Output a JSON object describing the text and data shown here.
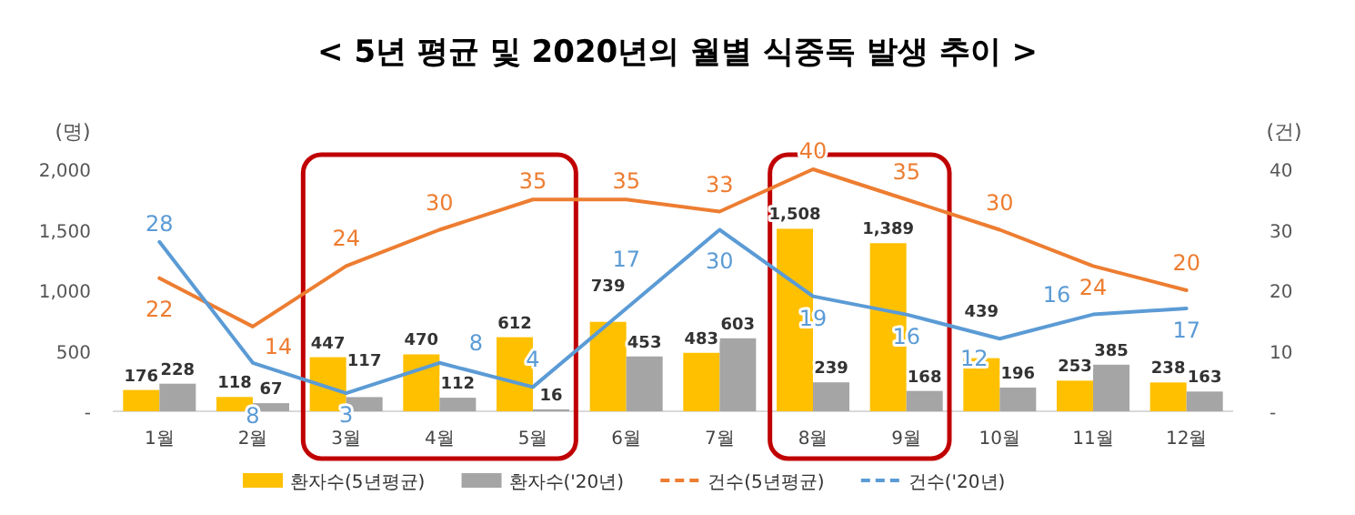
{
  "chart_data": {
    "type": "bar",
    "title": "< 5년 평균 및 2020년의 월별 식중독 발생 추이 >",
    "ylabel": "(명)",
    "y2label": "(건)",
    "categories": [
      "1월",
      "2월",
      "3월",
      "4월",
      "5월",
      "6월",
      "7월",
      "8월",
      "9월",
      "10월",
      "11월",
      "12월"
    ],
    "series": [
      {
        "name": "환자수(5년평균)",
        "type": "bar",
        "color": "#ffc000",
        "values": [
          176,
          118,
          447,
          470,
          612,
          739,
          483,
          1508,
          1389,
          439,
          253,
          238
        ],
        "value_labels": [
          "176",
          "118",
          "447",
          "470",
          "612",
          "739",
          "483",
          "1,508",
          "1,389",
          "439",
          "253",
          "238"
        ]
      },
      {
        "name": "환자수('20년)",
        "type": "bar",
        "color": "#a5a5a5",
        "values": [
          228,
          67,
          117,
          112,
          16,
          453,
          603,
          239,
          168,
          196,
          385,
          163
        ]
      },
      {
        "name": "건수(5년평균)",
        "type": "line",
        "axis": "y2",
        "color": "#ed7d31",
        "values": [
          22,
          14,
          24,
          30,
          35,
          35,
          33,
          40,
          35,
          30,
          24,
          20
        ]
      },
      {
        "name": "건수('20년)",
        "type": "line",
        "axis": "y2",
        "color": "#5b9bd5",
        "values": [
          28,
          8,
          3,
          8,
          4,
          17,
          30,
          19,
          16,
          12,
          16,
          17
        ]
      }
    ],
    "ylim": [
      0,
      2000
    ],
    "yticks": [
      {
        "value": 0,
        "label": "-"
      },
      500,
      {
        "value": 1000,
        "label": "1,000"
      },
      {
        "value": 1500,
        "label": "1,500"
      },
      {
        "value": 2000,
        "label": "2,000"
      }
    ],
    "y2lim": [
      0,
      40
    ],
    "y2ticks": [
      {
        "value": 0,
        "label": "-"
      },
      10,
      20,
      30,
      40
    ],
    "data_labels": true,
    "legend": "bottom"
  }
}
